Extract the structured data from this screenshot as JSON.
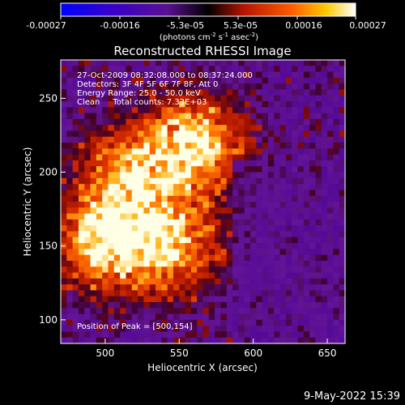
{
  "colorbar": {
    "ticks": [
      "-0.00027",
      "-0.00016",
      "-5.3e-05",
      "5.3e-05",
      "0.00016",
      "0.00027"
    ],
    "unit_prefix": "(photons cm",
    "unit_exp1": "-2",
    "unit_mid": " s",
    "unit_exp2": "-1",
    "unit_mid2": " asec",
    "unit_exp3": "-2",
    "unit_suffix": ")"
  },
  "chart_data": {
    "type": "heatmap",
    "title": "Reconstructed RHESSI Image",
    "xlabel": "Heliocentric X (arcsec)",
    "ylabel": "Heliocentric Y (arcsec)",
    "xlim": [
      470,
      662
    ],
    "ylim": [
      84,
      276
    ],
    "x_ticks": [
      500,
      550,
      600,
      650
    ],
    "y_ticks": [
      100,
      150,
      200,
      250
    ],
    "x_tick_labels": [
      "500",
      "550",
      "600",
      "650"
    ],
    "y_tick_labels": [
      "100",
      "150",
      "200",
      "250"
    ],
    "colorbar_range": [
      -0.00027,
      0.00027
    ],
    "bright_sources": [
      {
        "x": 560,
        "y": 218,
        "level": 1.0
      },
      {
        "x": 500,
        "y": 154,
        "level": 1.0
      },
      {
        "x": 545,
        "y": 150,
        "level": 0.85
      },
      {
        "x": 515,
        "y": 200,
        "level": 0.7
      }
    ],
    "annotations": [
      "27-Oct-2009 08:32:08.000 to 08:37:24.000",
      "Detectors: 3F 4F 5F 6F 7F 8F, Att 0",
      "Energy Range: 25.0 - 50.0 keV",
      "Clean     Total counts: 7.33E+03",
      "Position of Peak = [500,154]"
    ]
  },
  "footer": {
    "date": "9-May-2022 15:39"
  },
  "colors": {
    "background": "#000000",
    "axis": "#ffffff",
    "colormap": [
      "#0000ff",
      "#4b00a0",
      "#5a0a8c",
      "#8c0a3c",
      "#c81e00",
      "#ff6400",
      "#ffb400",
      "#ffffff"
    ]
  }
}
